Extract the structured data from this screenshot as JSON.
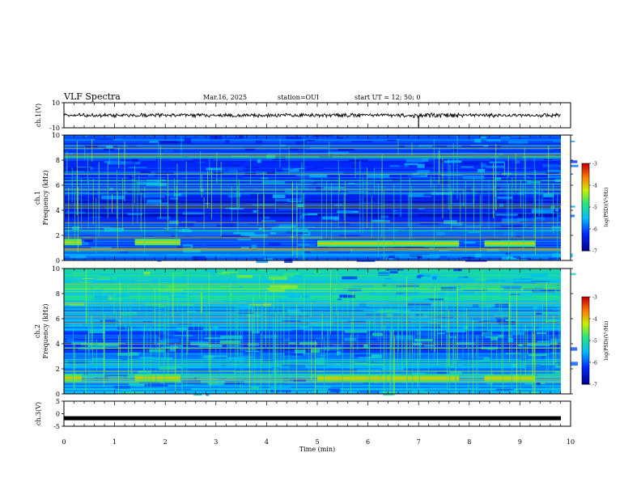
{
  "header": {
    "title": "VLF Spectra",
    "date": "Mar.16, 2025",
    "station": "station=OUI",
    "start_ut": "start  UT  =   12: 50: 0"
  },
  "chart_data": [
    {
      "type": "line",
      "panel": "ch1-waveform",
      "ylabel": "ch.1(V)",
      "ylim": [
        -10,
        10
      ],
      "ytick_labels": [
        "10",
        "-10"
      ],
      "xlim": [
        0,
        10
      ],
      "series": [
        {
          "values": [
            0
          ]
        }
      ],
      "annotations": [
        "spike near t=7.0 min"
      ]
    },
    {
      "type": "heatmap",
      "panel": "ch1-spectrogram",
      "ylabel": "ch.1 Frequency  (kHz)",
      "ylim": [
        0,
        10
      ],
      "ytick_labels": [
        "0",
        "2",
        "4",
        "6",
        "8",
        "10"
      ],
      "xlim": [
        0,
        10
      ],
      "colorbar": {
        "label": "log(PSD)(V²/Hz)",
        "range": [
          -7,
          -3
        ],
        "tick_labels": [
          "-3",
          "-4",
          "-5",
          "-6",
          "-7"
        ]
      },
      "bands": [
        {
          "f_khz": [
            1.2,
            1.7
          ],
          "t_min": [
            0,
            0.35
          ]
        },
        {
          "f_khz": [
            1.2,
            1.7
          ],
          "t_min": [
            1.4,
            2.3
          ]
        },
        {
          "f_khz": [
            1.1,
            1.6
          ],
          "t_min": [
            5.0,
            7.8
          ]
        },
        {
          "f_khz": [
            1.1,
            1.6
          ],
          "t_min": [
            8.3,
            9.3
          ]
        }
      ]
    },
    {
      "type": "heatmap",
      "panel": "ch2-spectrogram",
      "ylabel": "ch.2 Frequency  (kHz)",
      "ylim": [
        0,
        10
      ],
      "ytick_labels": [
        "0",
        "2",
        "4",
        "6",
        "8",
        "10"
      ],
      "xlim": [
        0,
        10
      ],
      "colorbar": {
        "label": "log(PSD)(V²/Hz)",
        "range": [
          -7,
          -3
        ],
        "tick_labels": [
          "-3",
          "-4",
          "-5",
          "-6",
          "-7"
        ]
      },
      "bands": [
        {
          "f_khz": [
            1.0,
            1.6
          ],
          "t_min": [
            0,
            0.35
          ]
        },
        {
          "f_khz": [
            1.0,
            1.6
          ],
          "t_min": [
            1.4,
            2.3
          ]
        },
        {
          "f_khz": [
            1.0,
            1.5
          ],
          "t_min": [
            5.0,
            7.8
          ]
        },
        {
          "f_khz": [
            1.0,
            1.5
          ],
          "t_min": [
            8.3,
            9.3
          ]
        }
      ]
    },
    {
      "type": "line",
      "panel": "ch3-waveform",
      "ylabel": "ch.3(V)",
      "ylim": [
        -5,
        5
      ],
      "ytick_labels": [
        "5",
        "0",
        "-5"
      ],
      "xlim": [
        0,
        10
      ],
      "xlabel": "Time  (min)",
      "xtick_labels": [
        "0",
        "1",
        "2",
        "3",
        "4",
        "5",
        "6",
        "7",
        "8",
        "9",
        "10"
      ],
      "series": [
        {
          "values": [
            -1.8
          ]
        }
      ]
    }
  ]
}
